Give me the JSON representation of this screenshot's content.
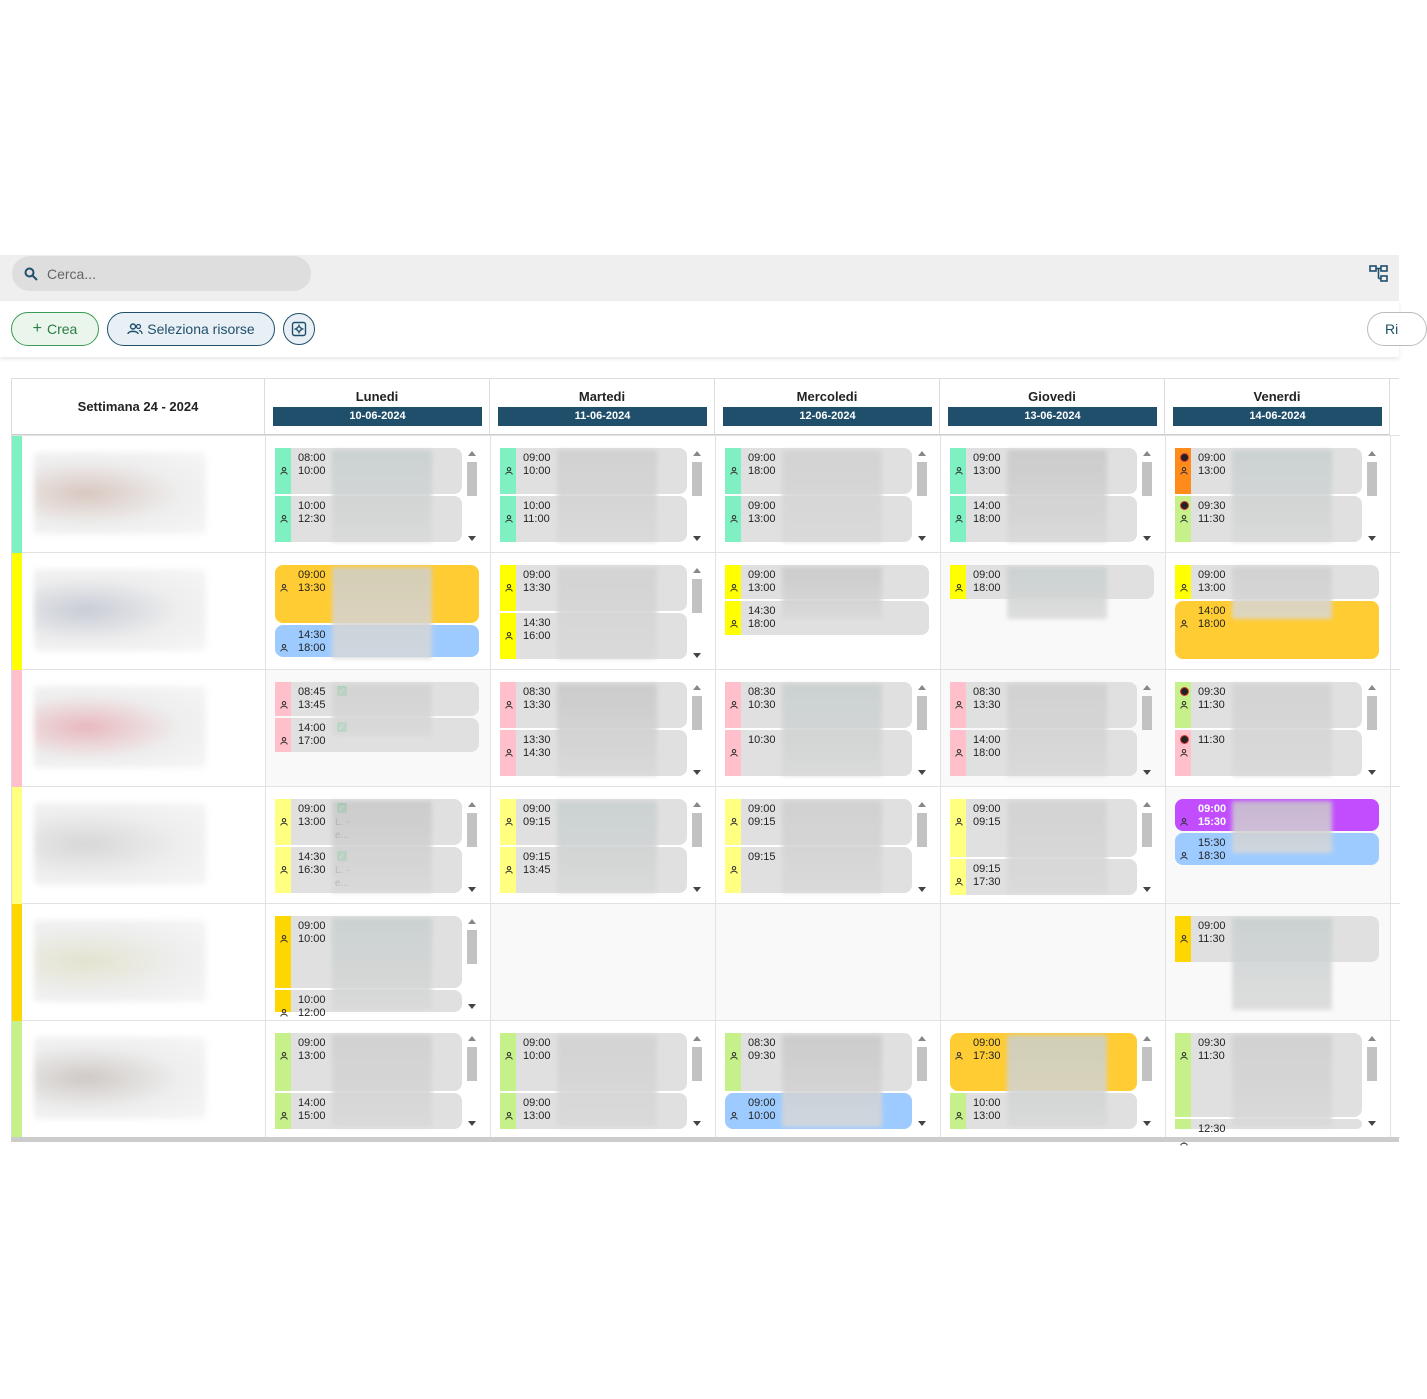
{
  "search": {
    "placeholder": "Cerca..."
  },
  "toolbar": {
    "crea_label": "Crea",
    "seleziona_label": "Seleziona risorse",
    "ri_label": "Ri"
  },
  "grid": {
    "week_label": "Settimana 24 - 2024",
    "days": [
      {
        "name": "Lunedi",
        "date": "10-06-2024"
      },
      {
        "name": "Martedi",
        "date": "11-06-2024"
      },
      {
        "name": "Mercoledi",
        "date": "12-06-2024"
      },
      {
        "name": "Giovedi",
        "date": "13-06-2024"
      },
      {
        "name": "Venerdi",
        "date": "14-06-2024"
      }
    ],
    "rows": [
      {
        "color": "#7ef0c2"
      },
      {
        "color": "#ffff00"
      },
      {
        "color": "#ffc0cb"
      },
      {
        "color": "#ffff80"
      },
      {
        "color": "#ffd700"
      },
      {
        "color": "#c5f08a"
      }
    ]
  },
  "events": {
    "r0d0": [
      {
        "start": "08:00",
        "end": "10:00"
      },
      {
        "start": "10:00",
        "end": "12:30"
      }
    ],
    "r0d1": [
      {
        "start": "09:00",
        "end": "10:00"
      },
      {
        "start": "10:00",
        "end": "11:00"
      }
    ],
    "r0d2": [
      {
        "start": "09:00",
        "end": "18:00"
      },
      {
        "start": "09:00",
        "end": "13:00"
      }
    ],
    "r0d3": [
      {
        "start": "09:00",
        "end": "13:00"
      },
      {
        "start": "14:00",
        "end": "18:00"
      }
    ],
    "r0d4": [
      {
        "start": "09:00",
        "end": "13:00"
      },
      {
        "start": "09:30",
        "end": "11:30"
      }
    ],
    "r1d0": [
      {
        "start": "09:00",
        "end": "13:30"
      },
      {
        "start": "14:30",
        "end": "18:00"
      }
    ],
    "r1d1": [
      {
        "start": "09:00",
        "end": "13:30"
      },
      {
        "start": "14:30",
        "end": "16:00"
      }
    ],
    "r1d2": [
      {
        "start": "09:00",
        "end": "13:00"
      },
      {
        "start": "14:30",
        "end": "18:00"
      }
    ],
    "r1d3": [
      {
        "start": "09:00",
        "end": "18:00"
      }
    ],
    "r1d4": [
      {
        "start": "09:00",
        "end": "13:00"
      },
      {
        "start": "14:00",
        "end": "18:00"
      }
    ],
    "r2d0": [
      {
        "start": "08:45",
        "end": "13:45"
      },
      {
        "start": "14:00",
        "end": "17:00"
      }
    ],
    "r2d1": [
      {
        "start": "08:30",
        "end": "13:30"
      },
      {
        "start": "13:30",
        "end": "14:30"
      }
    ],
    "r2d2": [
      {
        "start": "08:30",
        "end": "10:30"
      },
      {
        "start": "10:30",
        "end": ""
      }
    ],
    "r2d3": [
      {
        "start": "08:30",
        "end": "13:30"
      },
      {
        "start": "14:00",
        "end": "18:00"
      }
    ],
    "r2d4": [
      {
        "start": "09:30",
        "end": "11:30"
      },
      {
        "start": "11:30",
        "end": ""
      }
    ],
    "r3d0": [
      {
        "start": "09:00",
        "end": "13:00",
        "note": "L. -\ne..."
      },
      {
        "start": "14:30",
        "end": "16:30",
        "note": "L. -\ne..."
      }
    ],
    "r3d1": [
      {
        "start": "09:00",
        "end": "09:15"
      },
      {
        "start": "09:15",
        "end": "13:45"
      }
    ],
    "r3d2": [
      {
        "start": "09:00",
        "end": "09:15"
      },
      {
        "start": "09:15",
        "end": ""
      }
    ],
    "r3d3": [
      {
        "start": "09:00",
        "end": "09:15"
      },
      {
        "start": "09:15",
        "end": "17:30"
      }
    ],
    "r3d4": [
      {
        "start": "09:00",
        "end": "15:30"
      },
      {
        "start": "15:30",
        "end": "18:30"
      }
    ],
    "r4d0": [
      {
        "start": "09:00",
        "end": "10:00"
      },
      {
        "start": "10:00",
        "end": "12:00"
      }
    ],
    "r4d4": [
      {
        "start": "09:00",
        "end": "11:30"
      }
    ],
    "r5d0": [
      {
        "start": "09:00",
        "end": "13:00"
      },
      {
        "start": "14:00",
        "end": "15:00"
      }
    ],
    "r5d1": [
      {
        "start": "09:00",
        "end": "10:00"
      },
      {
        "start": "09:00",
        "end": "13:00"
      }
    ],
    "r5d2": [
      {
        "start": "08:30",
        "end": "09:30"
      },
      {
        "start": "09:00",
        "end": "10:00"
      }
    ],
    "r5d3": [
      {
        "start": "09:00",
        "end": "17:30"
      },
      {
        "start": "10:00",
        "end": "13:00"
      }
    ],
    "r5d4": [
      {
        "start": "09:30",
        "end": "11:30"
      },
      {
        "start": "12:30",
        "end": ""
      }
    ]
  }
}
